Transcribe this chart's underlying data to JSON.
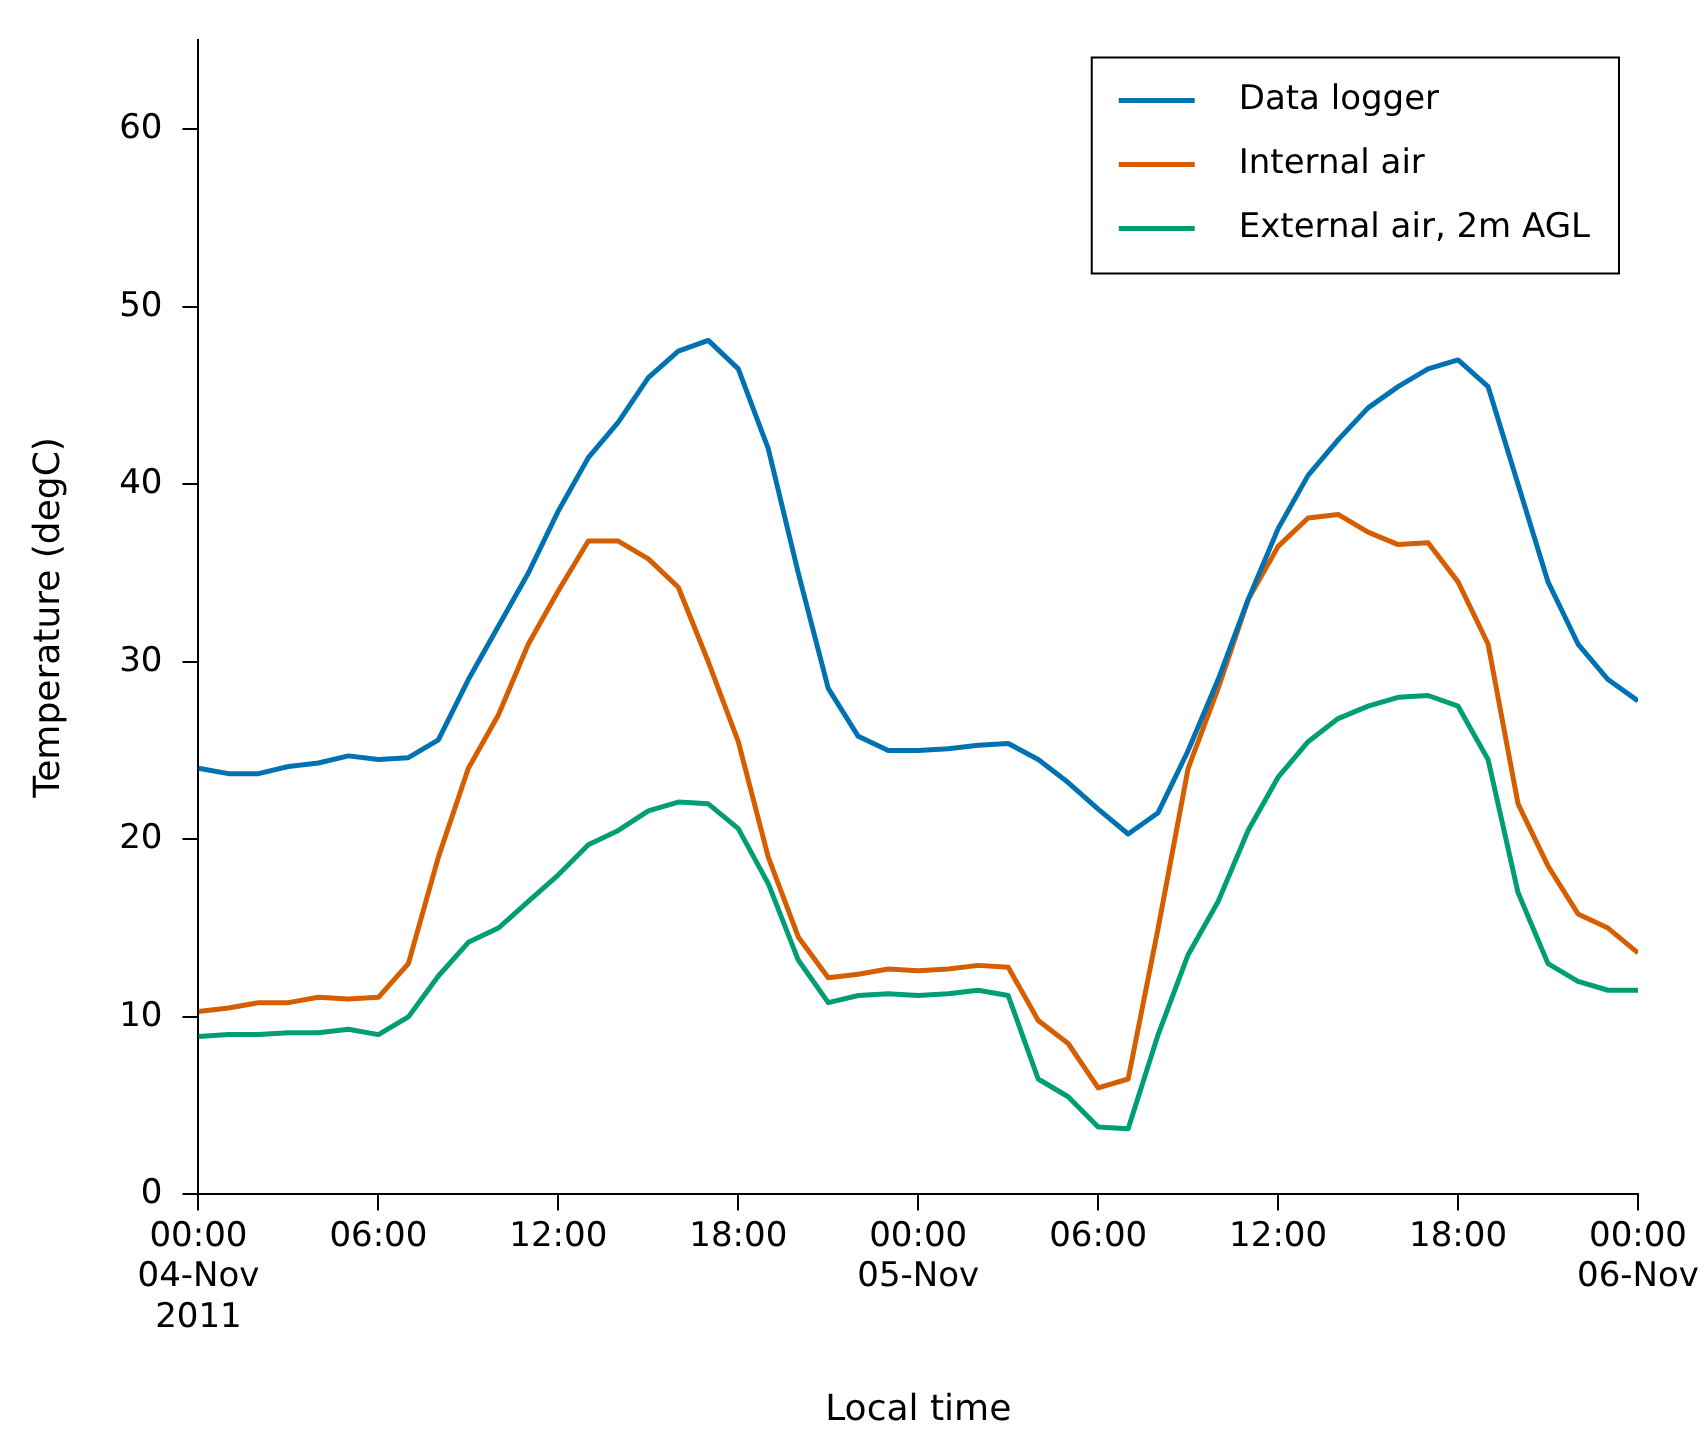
{
  "chart_data": {
    "type": "line",
    "xlabel": "Local time",
    "ylabel": "Temperature (degC)",
    "x": [
      "2011-11-04T00:00",
      "2011-11-04T01:00",
      "2011-11-04T02:00",
      "2011-11-04T03:00",
      "2011-11-04T04:00",
      "2011-11-04T05:00",
      "2011-11-04T06:00",
      "2011-11-04T07:00",
      "2011-11-04T08:00",
      "2011-11-04T09:00",
      "2011-11-04T10:00",
      "2011-11-04T11:00",
      "2011-11-04T12:00",
      "2011-11-04T13:00",
      "2011-11-04T14:00",
      "2011-11-04T15:00",
      "2011-11-04T16:00",
      "2011-11-04T17:00",
      "2011-11-04T18:00",
      "2011-11-04T19:00",
      "2011-11-04T20:00",
      "2011-11-04T21:00",
      "2011-11-04T22:00",
      "2011-11-04T23:00",
      "2011-11-05T00:00",
      "2011-11-05T01:00",
      "2011-11-05T02:00",
      "2011-11-05T03:00",
      "2011-11-05T04:00",
      "2011-11-05T05:00",
      "2011-11-05T06:00",
      "2011-11-05T07:00",
      "2011-11-05T08:00",
      "2011-11-05T09:00",
      "2011-11-05T10:00",
      "2011-11-05T11:00",
      "2011-11-05T12:00",
      "2011-11-05T13:00",
      "2011-11-05T14:00",
      "2011-11-05T15:00",
      "2011-11-05T16:00",
      "2011-11-05T17:00",
      "2011-11-05T18:00",
      "2011-11-05T19:00",
      "2011-11-05T20:00",
      "2011-11-05T21:00",
      "2011-11-05T22:00",
      "2011-11-05T23:00",
      "2011-11-06T00:00"
    ],
    "series": [
      {
        "name": "Data logger",
        "color": "#0072b2",
        "values": [
          24.0,
          23.7,
          23.7,
          24.1,
          24.3,
          24.7,
          24.5,
          24.6,
          25.6,
          29.0,
          32.0,
          35.0,
          38.5,
          41.5,
          43.5,
          46.0,
          47.5,
          48.1,
          46.5,
          42.0,
          35.0,
          28.5,
          25.8,
          25.0,
          25.0,
          25.1,
          25.3,
          25.4,
          24.5,
          23.2,
          21.7,
          20.3,
          21.5,
          25.0,
          29.0,
          33.5,
          37.5,
          40.5,
          42.5,
          44.3,
          45.5,
          46.5,
          47.0,
          45.5,
          40.0,
          34.5,
          31.0,
          29.0,
          27.8
        ]
      },
      {
        "name": "Internal air",
        "color": "#d55e00",
        "values": [
          10.3,
          10.5,
          10.8,
          10.8,
          11.1,
          11.0,
          11.1,
          13.0,
          19.0,
          24.0,
          27.0,
          31.0,
          34.0,
          36.8,
          36.8,
          35.8,
          34.2,
          30.0,
          25.5,
          19.0,
          14.5,
          12.2,
          12.4,
          12.7,
          12.6,
          12.7,
          12.9,
          12.8,
          9.8,
          8.5,
          6.0,
          6.5,
          15.0,
          24.0,
          28.5,
          33.5,
          36.5,
          38.1,
          38.3,
          37.3,
          36.6,
          36.7,
          34.5,
          31.0,
          22.0,
          18.5,
          15.8,
          15.0,
          13.6
        ]
      },
      {
        "name": "External air, 2m AGL",
        "color": "#009e73",
        "values": [
          8.9,
          9.0,
          9.0,
          9.1,
          9.1,
          9.3,
          9.0,
          10.0,
          12.3,
          14.2,
          15.0,
          16.5,
          18.0,
          19.7,
          20.5,
          21.6,
          22.1,
          22.0,
          20.6,
          17.5,
          13.2,
          10.8,
          11.2,
          11.3,
          11.2,
          11.3,
          11.5,
          11.2,
          6.5,
          5.5,
          3.8,
          3.7,
          9.0,
          13.5,
          16.5,
          20.5,
          23.5,
          25.5,
          26.8,
          27.5,
          28.0,
          28.1,
          27.5,
          24.5,
          17.0,
          13.0,
          12.0,
          11.5,
          11.5
        ]
      }
    ],
    "xlim": [
      "2011-11-04T00:00",
      "2011-11-06T00:00"
    ],
    "xticks": [
      {
        "value": "2011-11-04T00:00",
        "label": "00:00\n04-Nov\n2011"
      },
      {
        "value": "2011-11-04T06:00",
        "label": "06:00"
      },
      {
        "value": "2011-11-04T12:00",
        "label": "12:00"
      },
      {
        "value": "2011-11-04T18:00",
        "label": "18:00"
      },
      {
        "value": "2011-11-05T00:00",
        "label": "00:00\n05-Nov"
      },
      {
        "value": "2011-11-05T06:00",
        "label": "06:00"
      },
      {
        "value": "2011-11-05T12:00",
        "label": "12:00"
      },
      {
        "value": "2011-11-05T18:00",
        "label": "18:00"
      },
      {
        "value": "2011-11-06T00:00",
        "label": "00:00\n06-Nov"
      }
    ],
    "ylim": [
      0,
      65
    ],
    "yticks": [
      0,
      10,
      20,
      30,
      40,
      50,
      60
    ],
    "grid": false,
    "legend": "top right",
    "marker": "none",
    "line_style": "solid"
  }
}
